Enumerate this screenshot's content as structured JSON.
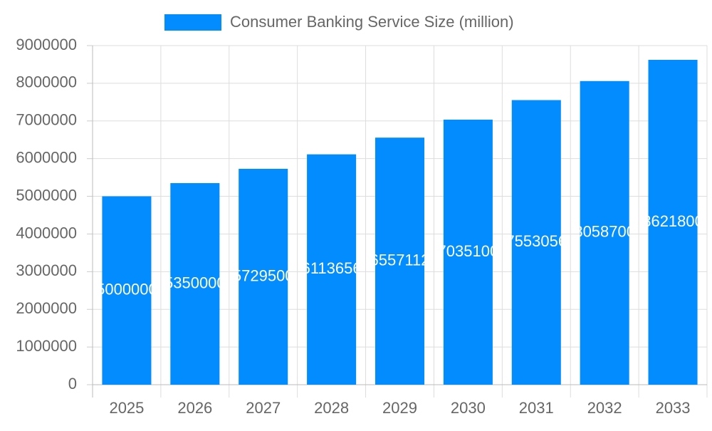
{
  "chart_data": {
    "type": "bar",
    "categories": [
      "2025",
      "2026",
      "2027",
      "2028",
      "2029",
      "2030",
      "2031",
      "2032",
      "2033"
    ],
    "series": [
      {
        "name": "Consumer Banking Service Size (million)",
        "color": "#028cfd",
        "values": [
          5000000,
          5350000,
          5729500,
          6113656,
          6557112,
          7035100,
          7553056,
          8058700,
          8621800
        ]
      }
    ],
    "ylim": [
      0,
      9000000
    ],
    "yticks": [
      0,
      1000000,
      2000000,
      3000000,
      4000000,
      5000000,
      6000000,
      7000000,
      8000000,
      9000000
    ],
    "grid": true,
    "legend": "top",
    "data_labels": true
  }
}
